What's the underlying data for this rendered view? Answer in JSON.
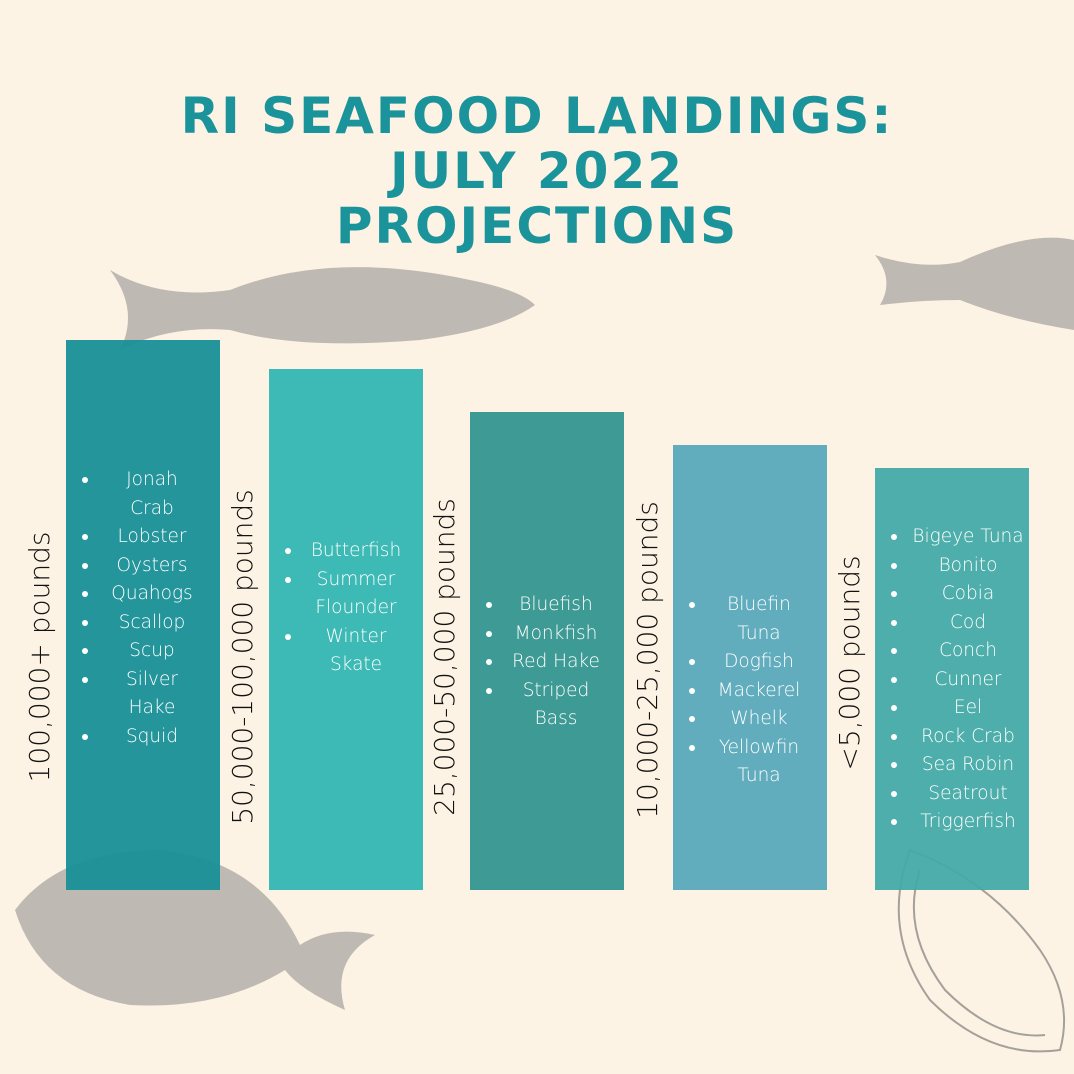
{
  "title": {
    "lines": [
      "RI SEAFOOD LANDINGS:",
      "JULY 2022",
      "PROJECTIONS"
    ]
  },
  "columns": [
    {
      "label": "100,000+ pounds",
      "items": [
        "Jonah Crab",
        "Lobster",
        "Oysters",
        "Quahogs",
        "Scallop",
        "Scup",
        "Silver Hake",
        "Squid"
      ]
    },
    {
      "label": "50,000-100,000 pounds",
      "items": [
        "Butterfish",
        "Summer Flounder",
        "Winter Skate"
      ]
    },
    {
      "label": "25,000-50,000 pounds",
      "items": [
        "Bluefish",
        "Monkfish",
        "Red Hake",
        "Striped Bass"
      ]
    },
    {
      "label": "10,000-25,000 pounds",
      "items": [
        "Bluefin Tuna",
        "Dogfish",
        "Mackerel",
        "Whelk",
        "Yellowfin Tuna"
      ]
    },
    {
      "label": "<5,000 pounds",
      "items": [
        "Bigeye Tuna",
        "Bonito",
        "Cobia",
        "Cod",
        "Conch",
        "Cunner",
        "Eel",
        "Rock Crab",
        "Sea Robin",
        "Seatrout",
        "Triggerfish"
      ]
    }
  ]
}
